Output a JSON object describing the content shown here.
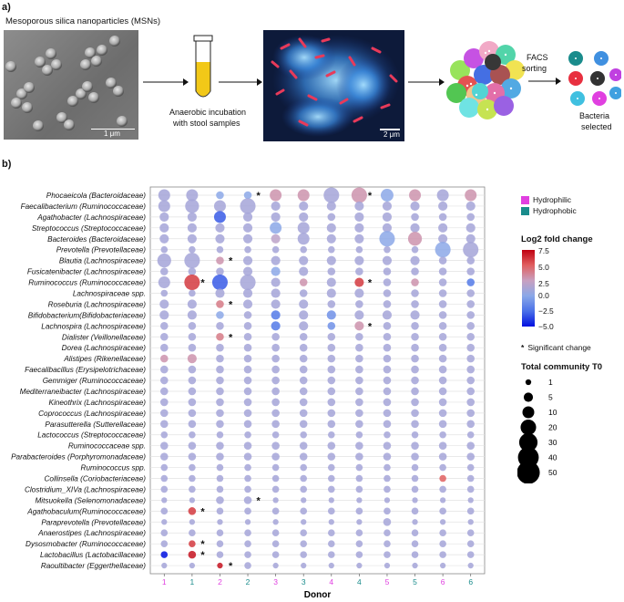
{
  "panel_a": {
    "label": "a)",
    "title": "Mesoporous silica nanoparticles (MSNs)",
    "sem_scale": "1 μm",
    "incubation_text_1": "Anaerobic incubation",
    "incubation_text_2": "with stool samples",
    "fluor_scale": "2 μm",
    "facs_1": "FACS",
    "facs_2": "sorting",
    "selected_1": "Bacteria",
    "selected_2": "selected",
    "colors": {
      "vial_liquid": "#f2c818",
      "arrow": "#111111",
      "fluor_bg": "#0d1a3a",
      "fluor_blue": "#3b8be0",
      "fluor_red": "#e83a5a"
    }
  },
  "panel_b": {
    "label": "b)",
    "legend": {
      "hydrophilic": "Hydrophilic",
      "hydrophobic": "Hydrophobic",
      "hydrophilic_color": "#e040e0",
      "hydrophobic_color": "#1a8c8c",
      "colorbar_title": "Log2 fold change",
      "colorbar_ticks": [
        "7.5",
        "5.0",
        "2.5",
        "0.0",
        "−2.5",
        "−5.0"
      ],
      "sig_text": "Significant change",
      "size_title": "Total community T0",
      "size_values": [
        "1",
        "5",
        "10",
        "20",
        "30",
        "40",
        "50"
      ]
    }
  },
  "chart_data": {
    "type": "bubble",
    "xlabel": "Donor",
    "x_ticks": [
      "1",
      "1",
      "2",
      "2",
      "3",
      "3",
      "4",
      "4",
      "5",
      "5",
      "6",
      "6"
    ],
    "x_tick_colors": [
      "#e040e0",
      "#1a8c8c",
      "#e040e0",
      "#1a8c8c",
      "#e040e0",
      "#1a8c8c",
      "#e040e0",
      "#1a8c8c",
      "#e040e0",
      "#1a8c8c",
      "#e040e0",
      "#1a8c8c"
    ],
    "taxa": [
      "Phocaeicola (Bacteroidaceae)",
      "Faecalibacterium (Ruminococcaceae)",
      "Agathobacter (Lachnospiraceae)",
      "Streptococcus (Streptococcaceae)",
      "Bacteroides (Bacteroidaceae)",
      "Prevotella (Prevotellaceae)",
      "Blautia (Lachnospiraceae)",
      "Fusicatenibacter (Lachnospiraceae)",
      "Ruminococcus (Ruminococcaceae)",
      "Lachnospiraceae spp.",
      "Roseburia (Lachnospiraceae)",
      "Bifidobacterium(Bifidobacteriaceae)",
      "Lachnospira (Lachnospiraceae)",
      "Dialister (Veillonellaceae)",
      "Dorea (Lachnospiraceae)",
      "Alistipes (Rikenellaceae)",
      "Faecalibacillus (Erysipelotrichaceae)",
      "Gemmiger (Ruminococcaceae)",
      "Mediterraneibacter (Lachnospiraceae)",
      "Kineothrix (Lachnospiraceae)",
      "Coprococcus (Lachnospiraceae)",
      "Parasutterella (Sutterellaceae)",
      "Lactococcus (Streptococcaceae)",
      "Ruminococcaceae spp.",
      "Parabacteroides (Porphyromonadaceae)",
      "Ruminococcus spp.",
      "Collinsella (Coriobacteriaceae)",
      "Clostridium_XIVa (Lachnospiraceae)",
      "Mitsuokella (Selenomonadaceae)",
      "Agathobaculum(Ruminococcaceae)",
      "Paraprevotella (Prevotellaceae)",
      "Anaerostipes (Lachnospiraceae)",
      "Dysosmobacter (Ruminococcaceae)",
      "Lactobacillus (Lactobacillaceae)",
      "Raoultibacter (Eggerthellaceae)"
    ],
    "sizes": [
      [
        10,
        10,
        3,
        3,
        10,
        10,
        20,
        20,
        12,
        10,
        10,
        10
      ],
      [
        10,
        15,
        10,
        20,
        5,
        5,
        5,
        5,
        5,
        5,
        5,
        5
      ],
      [
        5,
        5,
        10,
        5,
        5,
        5,
        3,
        5,
        5,
        3,
        3,
        3
      ],
      [
        5,
        5,
        5,
        5,
        10,
        10,
        5,
        5,
        5,
        5,
        5,
        5
      ],
      [
        5,
        5,
        5,
        5,
        5,
        10,
        5,
        5,
        20,
        15,
        5,
        5
      ],
      [
        2,
        2,
        2,
        2,
        2,
        2,
        2,
        2,
        2,
        2,
        20,
        20
      ],
      [
        15,
        20,
        3,
        5,
        5,
        5,
        5,
        5,
        5,
        5,
        3,
        3
      ],
      [
        3,
        3,
        3,
        5,
        5,
        5,
        3,
        3,
        3,
        3,
        3,
        3
      ],
      [
        10,
        20,
        20,
        20,
        5,
        3,
        5,
        5,
        3,
        3,
        3,
        3
      ],
      [
        2,
        2,
        5,
        5,
        5,
        3,
        5,
        5,
        3,
        3,
        3,
        3
      ],
      [
        5,
        5,
        3,
        5,
        5,
        5,
        3,
        3,
        3,
        3,
        3,
        3
      ],
      [
        5,
        5,
        3,
        3,
        5,
        5,
        5,
        5,
        5,
        5,
        3,
        3
      ],
      [
        3,
        3,
        3,
        3,
        5,
        5,
        3,
        5,
        3,
        3,
        3,
        3
      ],
      [
        3,
        3,
        3,
        3,
        3,
        3,
        3,
        3,
        3,
        3,
        3,
        3
      ],
      [
        3,
        3,
        3,
        3,
        3,
        3,
        3,
        3,
        3,
        3,
        3,
        3
      ],
      [
        3,
        5,
        3,
        3,
        3,
        3,
        3,
        3,
        3,
        3,
        3,
        3
      ],
      [
        3,
        3,
        3,
        3,
        3,
        3,
        3,
        3,
        3,
        3,
        3,
        3
      ],
      [
        3,
        3,
        3,
        3,
        3,
        3,
        3,
        3,
        3,
        3,
        3,
        3
      ],
      [
        3,
        3,
        3,
        3,
        3,
        3,
        3,
        3,
        3,
        3,
        3,
        3
      ],
      [
        3,
        3,
        3,
        3,
        3,
        3,
        3,
        3,
        3,
        3,
        3,
        3
      ],
      [
        3,
        3,
        3,
        3,
        3,
        3,
        3,
        3,
        3,
        3,
        3,
        3
      ],
      [
        3,
        3,
        3,
        3,
        3,
        3,
        3,
        3,
        3,
        3,
        3,
        3
      ],
      [
        2,
        2,
        2,
        2,
        2,
        2,
        2,
        2,
        2,
        2,
        2,
        2
      ],
      [
        3,
        3,
        3,
        3,
        3,
        3,
        3,
        3,
        3,
        3,
        3,
        3
      ],
      [
        3,
        3,
        3,
        3,
        3,
        3,
        3,
        3,
        3,
        3,
        3,
        3
      ],
      [
        2,
        2,
        2,
        2,
        2,
        2,
        2,
        2,
        2,
        2,
        2,
        2
      ],
      [
        2,
        2,
        2,
        2,
        2,
        2,
        2,
        2,
        2,
        2,
        2,
        2
      ],
      [
        2,
        2,
        2,
        2,
        2,
        2,
        2,
        2,
        2,
        2,
        2,
        2
      ],
      [
        1,
        1,
        3,
        3,
        1,
        1,
        1,
        1,
        1,
        1,
        1,
        1
      ],
      [
        2,
        3,
        2,
        2,
        2,
        2,
        2,
        2,
        2,
        2,
        2,
        2
      ],
      [
        1,
        1,
        1,
        1,
        1,
        1,
        1,
        1,
        3,
        1,
        1,
        1
      ],
      [
        2,
        2,
        2,
        2,
        2,
        2,
        2,
        2,
        2,
        2,
        2,
        2
      ],
      [
        2,
        2,
        2,
        2,
        2,
        2,
        2,
        2,
        2,
        2,
        2,
        2
      ],
      [
        2,
        3,
        2,
        2,
        2,
        2,
        2,
        2,
        2,
        2,
        2,
        2
      ],
      [
        1,
        1,
        1,
        2,
        1,
        1,
        1,
        1,
        1,
        1,
        1,
        1
      ]
    ],
    "log2fc": [
      [
        1,
        1,
        0,
        0,
        3,
        3,
        1,
        3,
        0,
        3,
        1,
        3
      ],
      [
        1,
        1,
        1,
        1,
        1,
        1,
        1,
        1,
        1,
        1,
        1,
        1
      ],
      [
        1,
        1,
        -3,
        1,
        1,
        1,
        1,
        1,
        1,
        1,
        1,
        1
      ],
      [
        1,
        1,
        1,
        1,
        0,
        1,
        1,
        1,
        1,
        1,
        1,
        1
      ],
      [
        1,
        1,
        1,
        1,
        2,
        1,
        1,
        1,
        0,
        3,
        1,
        1
      ],
      [
        1,
        1,
        1,
        1,
        1,
        1,
        1,
        1,
        1,
        1,
        0,
        1
      ],
      [
        1,
        1,
        3,
        1,
        1,
        1,
        1,
        1,
        1,
        1,
        1,
        1
      ],
      [
        1,
        1,
        1,
        1,
        0,
        1,
        1,
        1,
        1,
        1,
        1,
        1
      ],
      [
        1,
        6,
        -3,
        1,
        1,
        3,
        1,
        6,
        1,
        3,
        1,
        -2
      ],
      [
        1,
        1,
        1,
        1,
        1,
        1,
        1,
        1,
        1,
        1,
        1,
        1
      ],
      [
        1,
        1,
        4,
        1,
        1,
        1,
        1,
        1,
        1,
        1,
        1,
        1
      ],
      [
        1,
        1,
        0,
        1,
        -2,
        1,
        -1,
        1,
        1,
        1,
        1,
        1
      ],
      [
        1,
        1,
        1,
        1,
        -2,
        1,
        -1,
        3,
        1,
        1,
        1,
        1
      ],
      [
        1,
        1,
        4,
        1,
        1,
        1,
        1,
        1,
        1,
        1,
        1,
        1
      ],
      [
        1,
        1,
        1,
        1,
        1,
        1,
        1,
        1,
        1,
        1,
        1,
        1
      ],
      [
        3,
        3,
        1,
        1,
        1,
        1,
        1,
        1,
        1,
        1,
        1,
        1
      ],
      [
        1,
        1,
        1,
        1,
        1,
        1,
        1,
        1,
        1,
        1,
        1,
        1
      ],
      [
        1,
        1,
        1,
        1,
        1,
        1,
        1,
        1,
        1,
        1,
        1,
        1
      ],
      [
        1,
        1,
        1,
        1,
        1,
        1,
        1,
        1,
        1,
        1,
        1,
        1
      ],
      [
        1,
        1,
        1,
        1,
        1,
        1,
        1,
        1,
        1,
        1,
        1,
        1
      ],
      [
        1,
        1,
        1,
        1,
        1,
        1,
        1,
        1,
        1,
        1,
        1,
        1
      ],
      [
        1,
        1,
        1,
        1,
        1,
        1,
        1,
        1,
        1,
        1,
        1,
        1
      ],
      [
        1,
        1,
        1,
        1,
        1,
        1,
        1,
        1,
        1,
        1,
        1,
        1
      ],
      [
        1,
        1,
        1,
        1,
        1,
        1,
        1,
        1,
        1,
        1,
        1,
        1
      ],
      [
        1,
        1,
        1,
        1,
        1,
        1,
        1,
        1,
        1,
        1,
        1,
        1
      ],
      [
        1,
        1,
        1,
        1,
        1,
        1,
        1,
        1,
        1,
        1,
        1,
        1
      ],
      [
        1,
        1,
        1,
        1,
        1,
        1,
        1,
        1,
        1,
        1,
        5,
        1
      ],
      [
        1,
        1,
        1,
        1,
        1,
        1,
        1,
        1,
        1,
        1,
        1,
        1
      ],
      [
        1,
        1,
        1,
        1,
        1,
        1,
        1,
        1,
        1,
        1,
        1,
        1
      ],
      [
        1,
        6,
        1,
        1,
        1,
        1,
        1,
        1,
        1,
        1,
        1,
        1
      ],
      [
        1,
        1,
        1,
        1,
        1,
        1,
        1,
        1,
        1,
        1,
        1,
        1
      ],
      [
        1,
        1,
        1,
        1,
        1,
        1,
        1,
        1,
        1,
        1,
        1,
        1
      ],
      [
        1,
        6,
        1,
        1,
        1,
        1,
        1,
        1,
        1,
        1,
        1,
        1
      ],
      [
        -5,
        7,
        1,
        1,
        1,
        1,
        1,
        1,
        1,
        1,
        1,
        1
      ],
      [
        1,
        1,
        7,
        1,
        1,
        1,
        1,
        1,
        1,
        1,
        1,
        1
      ]
    ],
    "significant": [
      [
        0,
        3
      ],
      [
        0,
        7
      ],
      [
        6,
        2
      ],
      [
        8,
        1
      ],
      [
        8,
        7
      ],
      [
        10,
        2
      ],
      [
        12,
        7
      ],
      [
        13,
        2
      ],
      [
        28,
        3
      ],
      [
        29,
        1
      ],
      [
        32,
        1
      ],
      [
        33,
        1
      ],
      [
        34,
        2
      ]
    ],
    "color_range": [
      -5,
      7.5
    ]
  }
}
